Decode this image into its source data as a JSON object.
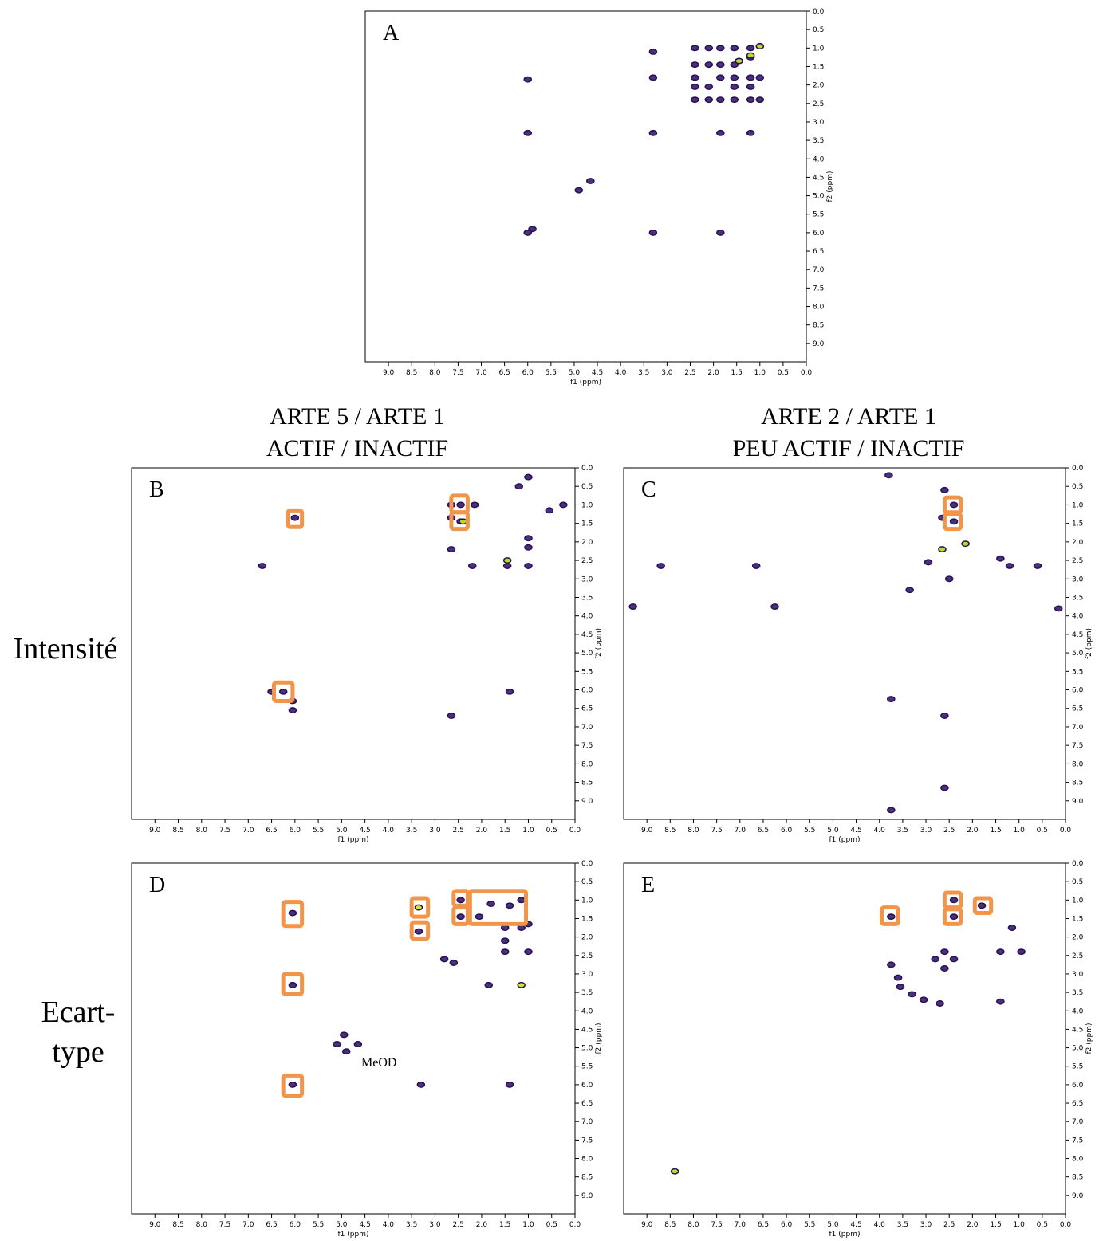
{
  "column_titles": [
    [
      "ARTE 5 / ARTE 1",
      "ACTIF / INACTIF"
    ],
    [
      "ARTE 2 / ARTE 1",
      "PEU ACTIF / INACTIF"
    ]
  ],
  "row_labels": [
    [
      "Intensité"
    ],
    [
      "Ecart-",
      "type"
    ]
  ],
  "chart_data": [
    {
      "type": "scatter",
      "title": "A",
      "x_label": "f1 (ppm)",
      "y_label": "f2 (ppm)",
      "xlim": [
        9.5,
        0
      ],
      "ylim": [
        0,
        9.5
      ],
      "y_reversed": true,
      "xticks": [
        {
          "value": 9,
          "label": "9.0"
        },
        8.5,
        {
          "value": 8,
          "label": "8.0"
        },
        7.5,
        {
          "value": 7,
          "label": "7.0"
        },
        6.5,
        {
          "value": 6,
          "label": "6.0"
        },
        5.5,
        {
          "value": 5,
          "label": "5.0"
        },
        4.5,
        {
          "value": 4,
          "label": "4.0"
        },
        3.5,
        {
          "value": 3,
          "label": "3.0"
        },
        2.5,
        {
          "value": 2,
          "label": "2.0"
        },
        1.5,
        {
          "value": 1,
          "label": "1.0"
        },
        0.5,
        {
          "value": 0,
          "label": "0.0"
        }
      ],
      "yticks": [
        {
          "value": 0,
          "label": "0.0"
        },
        0.5,
        {
          "value": 1,
          "label": "1.0"
        },
        1.5,
        {
          "value": 2,
          "label": "2.0"
        },
        2.5,
        {
          "value": 3,
          "label": "3.0"
        },
        3.5,
        {
          "value": 4,
          "label": "4.0"
        },
        4.5,
        {
          "value": 5,
          "label": "5.0"
        },
        5.5,
        {
          "value": 6,
          "label": "6.0"
        },
        6.5,
        {
          "value": 7,
          "label": "7.0"
        },
        7.5,
        {
          "value": 8,
          "label": "8.0"
        },
        8.5,
        {
          "value": 9,
          "label": "9.0"
        }
      ],
      "series": [
        {
          "color": "#46327e",
          "x": [
            6.0,
            6.0,
            3.3,
            3.3,
            3.3,
            4.9,
            4.65,
            6.0,
            5.9,
            3.3,
            1.85,
            1.85,
            1.2,
            2.4,
            2.1,
            1.85,
            1.55,
            1.2,
            1.0,
            2.4,
            2.1,
            1.85,
            1.55,
            1.45,
            1.2,
            2.4,
            1.85,
            1.55,
            1.2,
            1.0,
            2.4,
            2.1,
            1.55,
            1.2,
            2.4,
            2.1,
            1.85,
            1.55,
            1.2,
            1.0
          ],
          "values": [
            1.85,
            3.3,
            1.1,
            1.8,
            3.3,
            4.85,
            4.6,
            6.0,
            5.9,
            6.0,
            6.0,
            3.3,
            3.3,
            1.0,
            1.0,
            1.0,
            1.0,
            1.0,
            0.95,
            1.45,
            1.45,
            1.45,
            1.45,
            1.35,
            1.25,
            1.8,
            1.8,
            1.8,
            1.8,
            1.8,
            2.05,
            2.05,
            2.05,
            2.05,
            2.4,
            2.4,
            2.4,
            2.4,
            2.4,
            2.4
          ]
        },
        {
          "color": "#b5de2b",
          "x": [
            1.0,
            1.45,
            1.2
          ],
          "values": [
            0.95,
            1.35,
            1.2
          ]
        }
      ],
      "boxes": []
    },
    {
      "type": "scatter",
      "title": "B",
      "x_label": "f1 (ppm)",
      "y_label": "f2 (ppm)",
      "xlim": [
        9.5,
        0
      ],
      "ylim": [
        0,
        9.5
      ],
      "y_reversed": true,
      "xticks": [
        {
          "value": 9,
          "label": "9.0"
        },
        8.5,
        {
          "value": 8,
          "label": "8.0"
        },
        7.5,
        {
          "value": 7,
          "label": "7.0"
        },
        6.5,
        {
          "value": 6,
          "label": "6.0"
        },
        5.5,
        {
          "value": 5,
          "label": "5.0"
        },
        4.5,
        {
          "value": 4,
          "label": "4.0"
        },
        3.5,
        {
          "value": 3,
          "label": "3.0"
        },
        2.5,
        {
          "value": 2,
          "label": "2.0"
        },
        1.5,
        {
          "value": 1,
          "label": "1.0"
        },
        0.5,
        {
          "value": 0,
          "label": "0.0"
        }
      ],
      "yticks": [
        {
          "value": 0,
          "label": "0.0"
        },
        0.5,
        {
          "value": 1,
          "label": "1.0"
        },
        1.5,
        {
          "value": 2,
          "label": "2.0"
        },
        2.5,
        {
          "value": 3,
          "label": "3.0"
        },
        3.5,
        {
          "value": 4,
          "label": "4.0"
        },
        4.5,
        {
          "value": 5,
          "label": "5.0"
        },
        5.5,
        {
          "value": 6,
          "label": "6.0"
        },
        6.5,
        {
          "value": 7,
          "label": "7.0"
        },
        7.5,
        {
          "value": 8,
          "label": "8.0"
        },
        8.5,
        {
          "value": 9,
          "label": "9.0"
        }
      ],
      "series": [
        {
          "color": "#46327e",
          "x": [
            6.0,
            6.25,
            6.5,
            6.05,
            6.05,
            6.7,
            2.45,
            2.65,
            2.45,
            2.65,
            2.15,
            2.65,
            2.2,
            1.0,
            1.2,
            0.55,
            0.25,
            1.45,
            1.0,
            1.0,
            1.0,
            1.4,
            2.65
          ],
          "values": [
            1.35,
            6.05,
            6.05,
            6.3,
            6.55,
            2.65,
            1.0,
            1.0,
            1.45,
            1.35,
            1.0,
            2.2,
            2.65,
            0.25,
            0.5,
            1.15,
            1.0,
            2.65,
            2.65,
            2.15,
            1.9,
            6.05,
            6.7
          ]
        },
        {
          "color": "#b5de2b",
          "x": [
            1.45,
            2.4
          ],
          "values": [
            2.5,
            1.45
          ]
        }
      ],
      "boxes": [
        {
          "x": [
            6.15,
            5.85
          ],
          "y": [
            1.15,
            1.6
          ]
        },
        {
          "x": [
            2.65,
            2.3
          ],
          "y": [
            0.75,
            1.2
          ]
        },
        {
          "x": [
            2.65,
            2.3
          ],
          "y": [
            1.2,
            1.65
          ]
        },
        {
          "x": [
            6.45,
            6.05
          ],
          "y": [
            5.8,
            6.3
          ]
        }
      ]
    },
    {
      "type": "scatter",
      "title": "C",
      "x_label": "f1 (ppm)",
      "y_label": "f2 (ppm)",
      "xlim": [
        9.5,
        0
      ],
      "ylim": [
        0,
        9.5
      ],
      "y_reversed": true,
      "xticks": [
        {
          "value": 9,
          "label": "9.0"
        },
        8.5,
        {
          "value": 8,
          "label": "8.0"
        },
        7.5,
        {
          "value": 7,
          "label": "7.0"
        },
        6.5,
        {
          "value": 6,
          "label": "6.0"
        },
        5.5,
        {
          "value": 5,
          "label": "5.0"
        },
        4.5,
        {
          "value": 4,
          "label": "4.0"
        },
        3.5,
        {
          "value": 3,
          "label": "3.0"
        },
        2.5,
        {
          "value": 2,
          "label": "2.0"
        },
        1.5,
        {
          "value": 1,
          "label": "1.0"
        },
        0.5,
        {
          "value": 0,
          "label": "0.0"
        }
      ],
      "yticks": [
        {
          "value": 0,
          "label": "0.0"
        },
        0.5,
        {
          "value": 1,
          "label": "1.0"
        },
        1.5,
        {
          "value": 2,
          "label": "2.0"
        },
        2.5,
        {
          "value": 3,
          "label": "3.0"
        },
        3.5,
        {
          "value": 4,
          "label": "4.0"
        },
        4.5,
        {
          "value": 5,
          "label": "5.0"
        },
        5.5,
        {
          "value": 6,
          "label": "6.0"
        },
        6.5,
        {
          "value": 7,
          "label": "7.0"
        },
        7.5,
        {
          "value": 8,
          "label": "8.0"
        },
        8.5,
        {
          "value": 9,
          "label": "9.0"
        }
      ],
      "series": [
        {
          "color": "#46327e",
          "x": [
            3.8,
            2.6,
            2.4,
            2.4,
            2.65,
            8.7,
            6.65,
            1.4,
            1.2,
            0.6,
            2.95,
            3.35,
            2.5,
            9.3,
            6.25,
            0.15,
            3.75,
            2.6,
            2.6,
            3.75
          ],
          "values": [
            0.2,
            0.6,
            1.0,
            1.45,
            1.35,
            2.65,
            2.65,
            2.45,
            2.65,
            2.65,
            2.55,
            3.3,
            3.0,
            3.75,
            3.75,
            3.8,
            6.25,
            6.7,
            8.65,
            9.25
          ]
        },
        {
          "color": "#b5de2b",
          "x": [
            2.65,
            2.15
          ],
          "values": [
            2.2,
            2.05
          ]
        }
      ],
      "boxes": [
        {
          "x": [
            2.6,
            2.25
          ],
          "y": [
            0.8,
            1.2
          ]
        },
        {
          "x": [
            2.6,
            2.25
          ],
          "y": [
            1.25,
            1.65
          ]
        }
      ]
    },
    {
      "type": "scatter",
      "title": "D",
      "x_label": "f1 (ppm)",
      "y_label": "f2 (ppm)",
      "xlim": [
        9.5,
        0
      ],
      "ylim": [
        0,
        9.5
      ],
      "y_reversed": true,
      "annotation": "MeOD",
      "xticks": [
        {
          "value": 9,
          "label": "9.0"
        },
        8.5,
        {
          "value": 8,
          "label": "8.0"
        },
        7.5,
        {
          "value": 7,
          "label": "7.0"
        },
        6.5,
        {
          "value": 6,
          "label": "6.0"
        },
        5.5,
        {
          "value": 5,
          "label": "5.0"
        },
        4.5,
        {
          "value": 4,
          "label": "4.0"
        },
        3.5,
        {
          "value": 3,
          "label": "3.0"
        },
        2.5,
        {
          "value": 2,
          "label": "2.0"
        },
        1.5,
        {
          "value": 1,
          "label": "1.0"
        },
        0.5,
        {
          "value": 0,
          "label": "0.0"
        }
      ],
      "yticks": [
        {
          "value": 0,
          "label": "0.0"
        },
        0.5,
        {
          "value": 1,
          "label": "1.0"
        },
        1.5,
        {
          "value": 2,
          "label": "2.0"
        },
        2.5,
        {
          "value": 3,
          "label": "3.0"
        },
        3.5,
        {
          "value": 4,
          "label": "4.0"
        },
        4.5,
        {
          "value": 5,
          "label": "5.0"
        },
        5.5,
        {
          "value": 6,
          "label": "6.0"
        },
        6.5,
        {
          "value": 7,
          "label": "7.0"
        },
        7.5,
        {
          "value": 8,
          "label": "8.0"
        },
        8.5,
        {
          "value": 9,
          "label": "9.0"
        }
      ],
      "series": [
        {
          "color": "#46327e",
          "x": [
            6.05,
            6.05,
            6.05,
            3.35,
            2.45,
            2.45,
            2.05,
            1.8,
            1.4,
            1.15,
            1.5,
            1.15,
            1.0,
            1.5,
            1.5,
            1.0,
            1.85,
            4.95,
            4.65,
            5.1,
            4.9,
            3.3,
            1.4,
            2.8,
            2.6
          ],
          "values": [
            1.35,
            3.3,
            6.0,
            1.85,
            1.0,
            1.45,
            1.45,
            1.1,
            1.15,
            1.0,
            1.75,
            1.75,
            1.65,
            2.1,
            2.4,
            2.4,
            3.3,
            4.65,
            4.9,
            4.9,
            5.1,
            6.0,
            6.0,
            2.6,
            2.7
          ]
        },
        {
          "color": "#d6e23a",
          "x": [
            3.35,
            1.15
          ],
          "values": [
            1.2,
            3.3
          ]
        }
      ],
      "boxes": [
        {
          "x": [
            6.25,
            5.85
          ],
          "y": [
            1.05,
            1.7
          ]
        },
        {
          "x": [
            6.25,
            5.85
          ],
          "y": [
            3.0,
            3.55
          ]
        },
        {
          "x": [
            6.25,
            5.85
          ],
          "y": [
            5.75,
            6.3
          ]
        },
        {
          "x": [
            3.5,
            3.15
          ],
          "y": [
            0.95,
            1.45
          ]
        },
        {
          "x": [
            3.5,
            3.15
          ],
          "y": [
            1.6,
            2.05
          ]
        },
        {
          "x": [
            2.6,
            2.3
          ],
          "y": [
            0.75,
            1.15
          ]
        },
        {
          "x": [
            2.6,
            2.3
          ],
          "y": [
            1.2,
            1.65
          ]
        },
        {
          "x": [
            2.25,
            1.05
          ],
          "y": [
            0.75,
            1.65
          ]
        }
      ]
    },
    {
      "type": "scatter",
      "title": "E",
      "x_label": "f1 (ppm)",
      "y_label": "f2 (ppm)",
      "xlim": [
        9.5,
        0
      ],
      "ylim": [
        0,
        9.5
      ],
      "y_reversed": true,
      "xticks": [
        {
          "value": 9,
          "label": "9.0"
        },
        8.5,
        {
          "value": 8,
          "label": "8.0"
        },
        7.5,
        {
          "value": 7,
          "label": "7.0"
        },
        6.5,
        {
          "value": 6,
          "label": "6.0"
        },
        5.5,
        {
          "value": 5,
          "label": "5.0"
        },
        4.5,
        {
          "value": 4,
          "label": "4.0"
        },
        3.5,
        {
          "value": 3,
          "label": "3.0"
        },
        2.5,
        {
          "value": 2,
          "label": "2.0"
        },
        1.5,
        {
          "value": 1,
          "label": "1.0"
        },
        0.5,
        {
          "value": 0,
          "label": "0.0"
        }
      ],
      "yticks": [
        {
          "value": 0,
          "label": "0.0"
        },
        0.5,
        {
          "value": 1,
          "label": "1.0"
        },
        1.5,
        {
          "value": 2,
          "label": "2.0"
        },
        2.5,
        {
          "value": 3,
          "label": "3.0"
        },
        3.5,
        {
          "value": 4,
          "label": "4.0"
        },
        4.5,
        {
          "value": 5,
          "label": "5.0"
        },
        5.5,
        {
          "value": 6,
          "label": "6.0"
        },
        6.5,
        {
          "value": 7,
          "label": "7.0"
        },
        7.5,
        {
          "value": 8,
          "label": "8.0"
        },
        8.5,
        {
          "value": 9,
          "label": "9.0"
        }
      ],
      "series": [
        {
          "color": "#46327e",
          "x": [
            2.4,
            2.4,
            1.8,
            3.75,
            1.15,
            1.4,
            0.95,
            2.8,
            2.6,
            2.6,
            2.4,
            3.75,
            3.6,
            3.55,
            3.3,
            3.05,
            2.7,
            1.4
          ],
          "values": [
            1.0,
            1.45,
            1.15,
            1.45,
            1.75,
            2.4,
            2.4,
            2.6,
            2.85,
            2.4,
            2.6,
            2.75,
            3.1,
            3.35,
            3.55,
            3.7,
            3.8,
            3.75
          ]
        },
        {
          "color": "#b5de2b",
          "x": [
            8.4
          ],
          "values": [
            8.35
          ]
        }
      ],
      "boxes": [
        {
          "x": [
            2.6,
            2.25
          ],
          "y": [
            0.8,
            1.2
          ]
        },
        {
          "x": [
            2.6,
            2.25
          ],
          "y": [
            1.25,
            1.65
          ]
        },
        {
          "x": [
            1.95,
            1.6
          ],
          "y": [
            0.95,
            1.35
          ]
        },
        {
          "x": [
            3.95,
            3.6
          ],
          "y": [
            1.2,
            1.65
          ]
        }
      ]
    }
  ]
}
